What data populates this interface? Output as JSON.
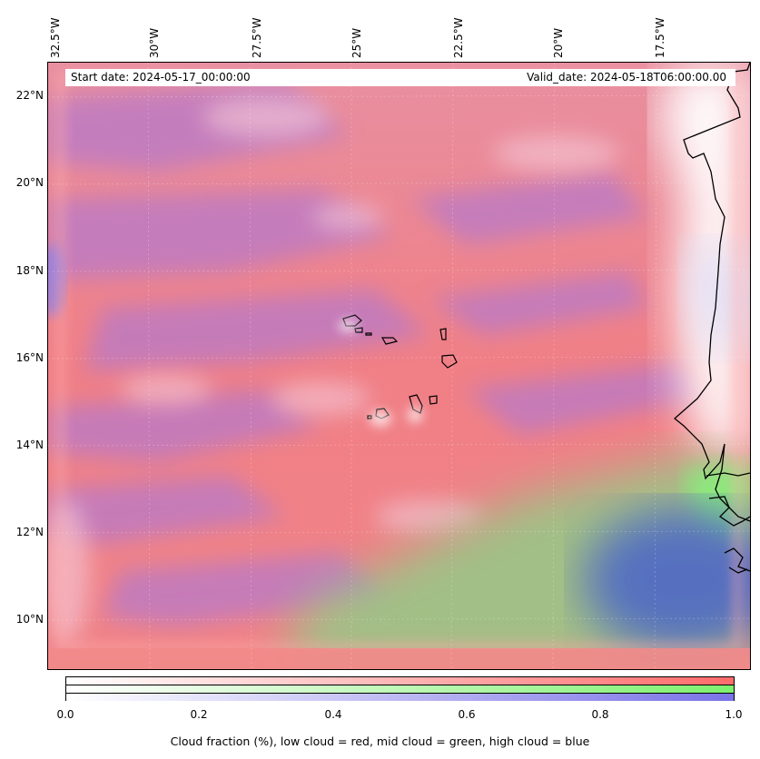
{
  "start_date": "Start date: 2024-05-17_00:00:00",
  "valid_date": "Valid_date: 2024-05-18T06:00:00.00",
  "lon_labels": [
    "32.5°W",
    "30°W",
    "27.5°W",
    "25°W",
    "22.5°W",
    "20°W",
    "17.5°W"
  ],
  "lat_labels": [
    "22°N",
    "20°N",
    "18°N",
    "16°N",
    "14°N",
    "12°N",
    "10°N"
  ],
  "colorbar": {
    "ticks": [
      "0.0",
      "0.2",
      "0.4",
      "0.6",
      "0.8",
      "1.0"
    ],
    "caption": "Cloud fraction (%), low cloud = red, mid cloud = green, high cloud = blue",
    "low_color": "#ff6b6b",
    "mid_color": "#7ef06e",
    "high_color": "#7b72e8"
  },
  "colors": {
    "low_cloud": "#ff7f7f",
    "mixed_low_high": "#c67ad0",
    "clear": "#ffffff",
    "coastline": "#000000"
  }
}
